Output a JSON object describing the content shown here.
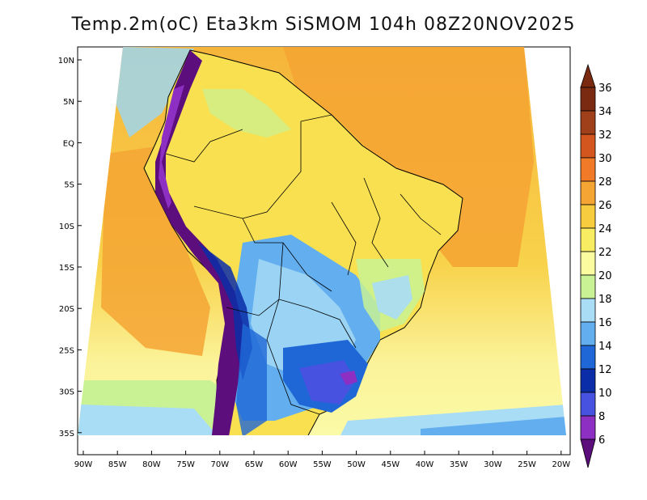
{
  "title": "Temp.2m(oC) Eta3km SiSMOM 104h 08Z20NOV2025",
  "map": {
    "lat_labels": [
      "10N",
      "5N",
      "EQ",
      "5S",
      "10S",
      "15S",
      "20S",
      "25S",
      "30S",
      "35S"
    ],
    "lon_labels": [
      "90W",
      "85W",
      "80W",
      "75W",
      "70W",
      "65W",
      "60W",
      "55W",
      "50W",
      "45W",
      "40W",
      "35W",
      "30W",
      "25W",
      "20W"
    ]
  },
  "colorbar": {
    "labels": [
      "36",
      "34",
      "32",
      "30",
      "28",
      "26",
      "24",
      "22",
      "20",
      "18",
      "16",
      "14",
      "12",
      "10",
      "8",
      "6"
    ],
    "colors": [
      "#7a2a10",
      "#a0401a",
      "#d2561e",
      "#f07a28",
      "#f5a534",
      "#f7cc3e",
      "#f8ec62",
      "#fbfba0",
      "#c9f294",
      "#a9dcf5",
      "#62aeef",
      "#1f66d6",
      "#0b2ea8",
      "#4752e0",
      "#8c2fc2",
      "#5b0e7c"
    ]
  }
}
